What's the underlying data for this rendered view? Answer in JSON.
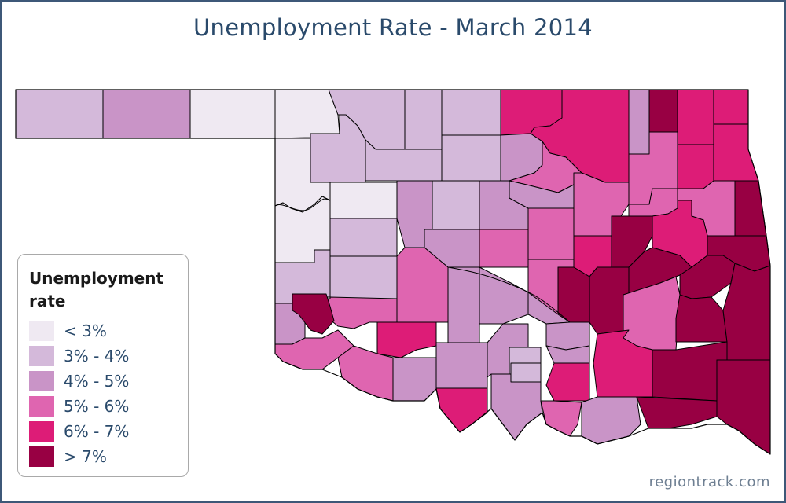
{
  "title": "Unemployment Rate - March 2014",
  "credit": "regiontrack.com",
  "legend": {
    "title": "Unemployment rate",
    "items": [
      {
        "label": "< 3%",
        "color": "#efe9f2"
      },
      {
        "label": "3% - 4%",
        "color": "#d4b9da"
      },
      {
        "label": "4% - 5%",
        "color": "#c994c7"
      },
      {
        "label": "5% - 6%",
        "color": "#df65b0"
      },
      {
        "label": "6% - 7%",
        "color": "#dd1c77"
      },
      {
        "label": "> 7%",
        "color": "#980043"
      }
    ]
  },
  "colors": {
    "title": "#2a4a6b",
    "frame": "#3d5878",
    "county_border": "#000000"
  }
}
